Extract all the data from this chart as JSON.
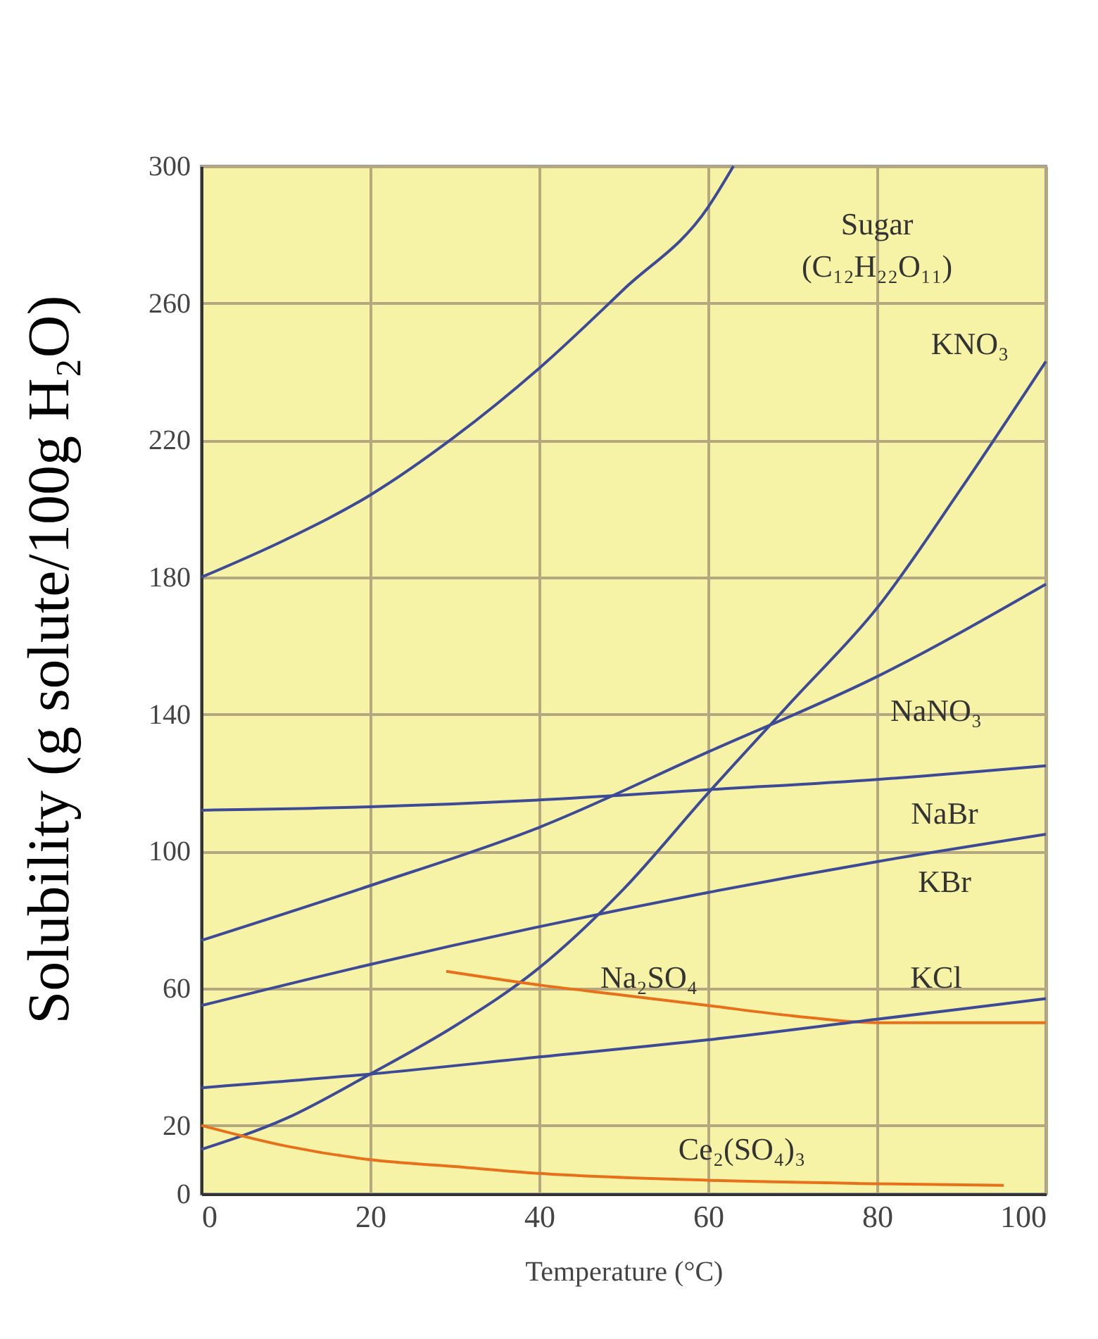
{
  "chart_data": {
    "type": "line",
    "xlabel": "Temperature (°C)",
    "ylabel": "Solubility (g solute/100g H₂O)",
    "xlim": [
      0,
      100
    ],
    "xticks": [
      0,
      20,
      40,
      60,
      80,
      100
    ],
    "ylim": [
      0,
      300
    ],
    "yticks": [
      0,
      20,
      60,
      100,
      140,
      180,
      220,
      260,
      300
    ],
    "grid": true,
    "legend": false,
    "marker": "none",
    "line_style": "solid",
    "series": [
      {
        "name": "Sugar (C₁₂H₂₂O₁₁)",
        "color": "#3d4a96",
        "x": [
          0,
          10,
          20,
          30,
          40,
          50,
          60,
          63
        ],
        "values": [
          180,
          191,
          204,
          221,
          241,
          264,
          288,
          300
        ]
      },
      {
        "name": "KNO₃",
        "color": "#3d4a96",
        "x": [
          0,
          10,
          20,
          30,
          40,
          50,
          60,
          70,
          80,
          90,
          100
        ],
        "values": [
          13,
          22,
          35,
          49,
          66,
          89,
          117,
          144,
          171,
          206,
          243
        ]
      },
      {
        "name": "NaNO₃",
        "color": "#3d4a96",
        "x": [
          0,
          20,
          40,
          60,
          80,
          100
        ],
        "values": [
          74,
          90,
          107,
          129,
          151,
          178
        ]
      },
      {
        "name": "NaBr",
        "color": "#3d4a96",
        "x": [
          0,
          20,
          40,
          60,
          80,
          100
        ],
        "values": [
          112,
          113,
          115,
          118,
          121,
          125
        ]
      },
      {
        "name": "KBr",
        "color": "#3d4a96",
        "x": [
          0,
          20,
          40,
          60,
          80,
          100
        ],
        "values": [
          55,
          67,
          78,
          88,
          97,
          105
        ]
      },
      {
        "name": "Na₂SO₄",
        "color": "#e8701a",
        "x": [
          29,
          40,
          50,
          60,
          70,
          80,
          90,
          100
        ],
        "values": [
          65,
          61,
          58,
          55,
          52,
          50,
          50,
          50
        ]
      },
      {
        "name": "KCl",
        "color": "#3d4a96",
        "x": [
          0,
          20,
          40,
          60,
          80,
          100
        ],
        "values": [
          31,
          35,
          40,
          45,
          51,
          57
        ]
      },
      {
        "name": "Ce₂(SO₄)₃",
        "color": "#e8701a",
        "x": [
          0,
          10,
          20,
          30,
          40,
          60,
          80,
          95
        ],
        "values": [
          20,
          14,
          10,
          8,
          6,
          4,
          3,
          2.5
        ]
      }
    ]
  }
}
